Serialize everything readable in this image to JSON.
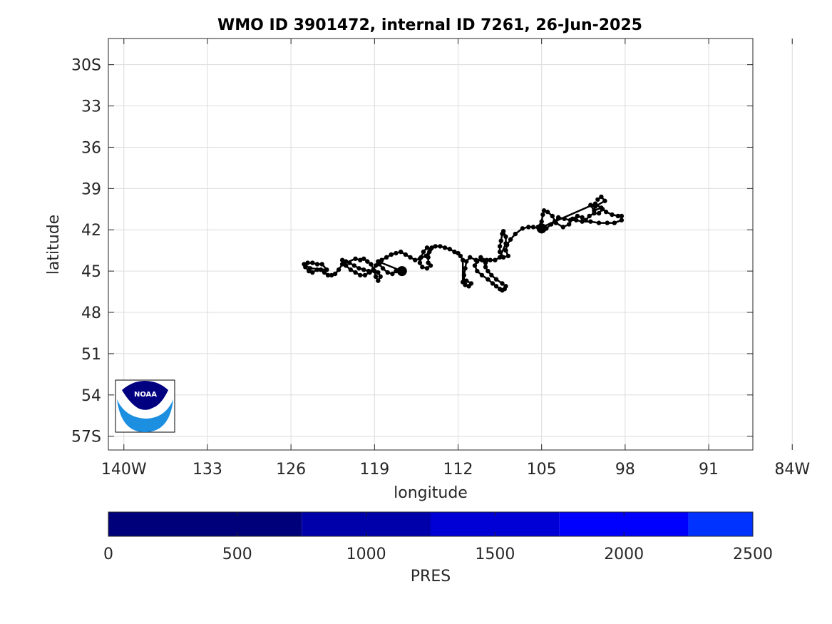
{
  "chart_data": {
    "type": "scatter",
    "title": "WMO ID 3901472, internal ID 7261, 26-Jun-2025",
    "xlabel": "longitude",
    "ylabel": "latitude",
    "xlim": [
      -141.3,
      -87.3
    ],
    "ylim": [
      -58.0,
      -28.1
    ],
    "x_ticks": [
      -140,
      -133,
      -126,
      -119,
      -112,
      -105,
      -98,
      -91,
      -84
    ],
    "x_tick_labels": [
      "140W",
      "133",
      "126",
      "119",
      "112",
      "105",
      "98",
      "91",
      "84W"
    ],
    "y_ticks": [
      -30,
      -33,
      -36,
      -39,
      -42,
      -45,
      -48,
      -51,
      -54,
      -57
    ],
    "y_tick_labels": [
      "30S",
      "33",
      "36",
      "39",
      "42",
      "45",
      "48",
      "51",
      "54",
      "57S"
    ],
    "grid": true,
    "logo_text": "NOAA",
    "colorbar": {
      "label": "PRES",
      "range": [
        0,
        2500
      ],
      "ticks": [
        0,
        500,
        1000,
        1500,
        2000,
        2500
      ],
      "tick_labels": [
        "0",
        "500",
        "1000",
        "1500",
        "2000",
        "2500"
      ],
      "segments": [
        {
          "from": 0,
          "to": 750,
          "color": "#00007a"
        },
        {
          "from": 750,
          "to": 1250,
          "color": "#0000aa"
        },
        {
          "from": 1250,
          "to": 1750,
          "color": "#0000d6"
        },
        {
          "from": 1750,
          "to": 2250,
          "color": "#0000ff"
        },
        {
          "from": 2250,
          "to": 2500,
          "color": "#0033ff"
        }
      ]
    },
    "track_color": "#000000",
    "track_points": [
      [
        -100.3,
        -39.8
      ],
      [
        -100.0,
        -39.6
      ],
      [
        -99.7,
        -39.9
      ],
      [
        -100.5,
        -40.3
      ],
      [
        -100.9,
        -40.2
      ],
      [
        -100.6,
        -40.6
      ],
      [
        -100.0,
        -40.4
      ],
      [
        -99.6,
        -40.7
      ],
      [
        -99.1,
        -40.9
      ],
      [
        -98.6,
        -41.0
      ],
      [
        -98.3,
        -41.0
      ],
      [
        -98.3,
        -41.3
      ],
      [
        -98.9,
        -41.5
      ],
      [
        -99.5,
        -41.5
      ],
      [
        -100.2,
        -41.5
      ],
      [
        -100.9,
        -41.4
      ],
      [
        -101.6,
        -41.4
      ],
      [
        -102.1,
        -41.3
      ],
      [
        -102.6,
        -41.3
      ],
      [
        -103.1,
        -41.2
      ],
      [
        -103.6,
        -41.1
      ],
      [
        -103.9,
        -41.4
      ],
      [
        -104.2,
        -41.6
      ],
      [
        -104.6,
        -41.9
      ],
      [
        -105.0,
        -42.1
      ],
      [
        -105.3,
        -41.8
      ],
      [
        -105.0,
        -41.4
      ],
      [
        -104.9,
        -40.9
      ],
      [
        -104.8,
        -40.6
      ],
      [
        -104.5,
        -40.7
      ],
      [
        -104.1,
        -41.0
      ],
      [
        -103.8,
        -41.5
      ],
      [
        -103.2,
        -41.8
      ],
      [
        -102.7,
        -41.6
      ],
      [
        -102.4,
        -41.2
      ],
      [
        -102.0,
        -41.0
      ],
      [
        -101.6,
        -41.1
      ],
      [
        -101.3,
        -41.3
      ],
      [
        -101.0,
        -41.0
      ],
      [
        -100.6,
        -40.8
      ],
      [
        -100.2,
        -40.8
      ],
      [
        -99.9,
        -40.5
      ],
      [
        -100.5,
        -40.1
      ],
      [
        -105.2,
        -41.9
      ],
      [
        -105.7,
        -41.8
      ],
      [
        -106.1,
        -41.8
      ],
      [
        -106.6,
        -41.9
      ],
      [
        -107.2,
        -42.3
      ],
      [
        -107.6,
        -42.7
      ],
      [
        -107.9,
        -43.1
      ],
      [
        -108.0,
        -43.5
      ],
      [
        -107.8,
        -43.9
      ],
      [
        -108.2,
        -44.0
      ],
      [
        -108.5,
        -43.6
      ],
      [
        -108.5,
        -43.2
      ],
      [
        -108.4,
        -42.8
      ],
      [
        -108.3,
        -42.3
      ],
      [
        -108.2,
        -42.1
      ],
      [
        -108.0,
        -42.5
      ],
      [
        -108.0,
        -43.0
      ],
      [
        -108.5,
        -44.0
      ],
      [
        -108.9,
        -44.2
      ],
      [
        -109.3,
        -44.2
      ],
      [
        -109.6,
        -44.2
      ],
      [
        -109.9,
        -44.2
      ],
      [
        -110.1,
        -44.0
      ],
      [
        -110.4,
        -44.3
      ],
      [
        -110.6,
        -44.6
      ],
      [
        -110.4,
        -45.0
      ],
      [
        -110.0,
        -45.3
      ],
      [
        -109.5,
        -45.6
      ],
      [
        -109.1,
        -45.9
      ],
      [
        -108.8,
        -46.1
      ],
      [
        -108.5,
        -46.3
      ],
      [
        -108.3,
        -46.4
      ],
      [
        -108.1,
        -46.3
      ],
      [
        -108.0,
        -46.1
      ],
      [
        -108.3,
        -45.9
      ],
      [
        -108.8,
        -45.6
      ],
      [
        -109.2,
        -45.3
      ],
      [
        -109.5,
        -45.0
      ],
      [
        -109.7,
        -44.7
      ],
      [
        -109.7,
        -44.4
      ],
      [
        -110.0,
        -44.2
      ],
      [
        -110.5,
        -44.2
      ],
      [
        -111.0,
        -44.0
      ],
      [
        -111.3,
        -44.3
      ],
      [
        -111.4,
        -44.8
      ],
      [
        -111.5,
        -45.3
      ],
      [
        -111.5,
        -45.8
      ],
      [
        -111.4,
        -46.0
      ],
      [
        -111.1,
        -46.1
      ],
      [
        -110.9,
        -45.9
      ],
      [
        -111.3,
        -45.7
      ],
      [
        -111.6,
        -45.8
      ],
      [
        -111.6,
        -44.2
      ],
      [
        -111.8,
        -43.9
      ],
      [
        -112.0,
        -43.7
      ],
      [
        -112.3,
        -43.6
      ],
      [
        -112.7,
        -43.4
      ],
      [
        -113.1,
        -43.3
      ],
      [
        -113.5,
        -43.2
      ],
      [
        -113.9,
        -43.2
      ],
      [
        -114.2,
        -43.3
      ],
      [
        -114.4,
        -43.6
      ],
      [
        -114.5,
        -44.0
      ],
      [
        -114.5,
        -44.4
      ],
      [
        -114.3,
        -44.6
      ],
      [
        -114.6,
        -44.8
      ],
      [
        -115.0,
        -44.7
      ],
      [
        -115.2,
        -44.4
      ],
      [
        -115.1,
        -44.0
      ],
      [
        -114.9,
        -43.6
      ],
      [
        -114.6,
        -43.3
      ],
      [
        -114.3,
        -43.4
      ],
      [
        -114.7,
        -43.9
      ],
      [
        -115.2,
        -44.1
      ],
      [
        -115.6,
        -44.2
      ],
      [
        -116.0,
        -44.0
      ],
      [
        -116.4,
        -43.8
      ],
      [
        -116.8,
        -43.6
      ],
      [
        -117.2,
        -43.7
      ],
      [
        -117.6,
        -43.8
      ],
      [
        -118.0,
        -44.0
      ],
      [
        -118.4,
        -44.2
      ],
      [
        -118.6,
        -44.5
      ],
      [
        -118.3,
        -44.8
      ],
      [
        -117.9,
        -45.1
      ],
      [
        -117.5,
        -45.2
      ],
      [
        -117.2,
        -45.0
      ],
      [
        -116.7,
        -45.0
      ],
      [
        -118.7,
        -44.3
      ],
      [
        -118.9,
        -44.6
      ],
      [
        -119.1,
        -44.9
      ],
      [
        -119.5,
        -45.0
      ],
      [
        -119.9,
        -44.9
      ],
      [
        -120.3,
        -44.8
      ],
      [
        -120.7,
        -44.6
      ],
      [
        -121.1,
        -44.4
      ],
      [
        -121.4,
        -44.3
      ],
      [
        -121.7,
        -44.2
      ],
      [
        -121.4,
        -44.6
      ],
      [
        -121.0,
        -44.9
      ],
      [
        -120.6,
        -45.1
      ],
      [
        -120.2,
        -45.3
      ],
      [
        -119.8,
        -45.3
      ],
      [
        -119.4,
        -45.1
      ],
      [
        -119.0,
        -45.0
      ],
      [
        -118.7,
        -45.1
      ],
      [
        -118.5,
        -45.4
      ],
      [
        -118.7,
        -45.7
      ],
      [
        -118.9,
        -45.4
      ],
      [
        -119.0,
        -45.0
      ],
      [
        -119.3,
        -44.5
      ],
      [
        -119.6,
        -44.3
      ],
      [
        -119.9,
        -44.1
      ],
      [
        -120.2,
        -44.2
      ],
      [
        -120.6,
        -44.1
      ],
      [
        -121.7,
        -44.5
      ],
      [
        -122.0,
        -44.9
      ],
      [
        -122.3,
        -45.2
      ],
      [
        -122.6,
        -45.3
      ],
      [
        -122.9,
        -45.3
      ],
      [
        -123.2,
        -45.1
      ],
      [
        -123.5,
        -44.9
      ],
      [
        -123.8,
        -44.9
      ],
      [
        -124.2,
        -45.1
      ],
      [
        -124.5,
        -45.0
      ],
      [
        -124.8,
        -44.7
      ],
      [
        -124.6,
        -44.4
      ],
      [
        -124.2,
        -44.4
      ],
      [
        -123.8,
        -44.5
      ],
      [
        -123.4,
        -44.5
      ],
      [
        -123.0,
        -44.9
      ],
      [
        -124.4,
        -44.8
      ],
      [
        -124.9,
        -44.5
      ]
    ],
    "large_markers": [
      [
        -105.0,
        -41.9
      ],
      [
        -116.7,
        -45.0
      ]
    ]
  }
}
